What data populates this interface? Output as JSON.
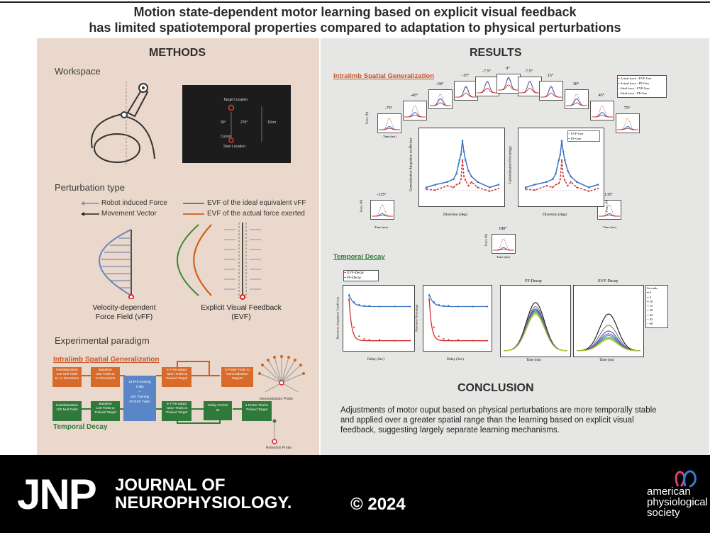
{
  "title": {
    "line1": "Motion state-dependent motor learning based on explicit visual feedback",
    "line2": "has limited spatiotemporal properties compared to adaptation to physical perturbations"
  },
  "methods": {
    "heading": "METHODS",
    "workspace": {
      "label": "Workspace",
      "screen": {
        "target": "Target Location",
        "cursor": "Cursor",
        "start": "Start Location",
        "left_angle": "90°",
        "right_angle": "270°",
        "distance": "10cm"
      }
    },
    "perturbation": {
      "label": "Perturbation type",
      "legend": {
        "robot": "Robot induced Force",
        "movement": "Movement Vector",
        "evf_ideal": "EVF of the ideal equivalent vFF",
        "evf_actual": "EVF of the actual force exerted"
      },
      "vff_caption": [
        "Velocity-dependent",
        "Force Field (vFF)"
      ],
      "evf_caption": [
        "Explicit Visual Feedback",
        "(EVF)"
      ]
    },
    "paradigm": {
      "label": "Experimental paradigm",
      "spatial_title": "Intralimb Spatial Generalization",
      "temporal_title": "Temporal Decay",
      "boxes": {
        "fam_top": [
          "Familiarization",
          "112 Null Trials",
          "to 14 Directions"
        ],
        "base_top": [
          "Baseline",
          "252 Trials to",
          "14 Directions"
        ],
        "center": [
          "15 Pre-training",
          "Trials",
          "+",
          "100 Training",
          "FF/EVF Trials"
        ],
        "readapt_top": [
          "5-7 Re-adapt",
          "-ation Trials at",
          "Trained Target"
        ],
        "probe_top": [
          "8 Probe Trials to",
          "Generalization",
          "Targets"
        ],
        "fam_bot": [
          "Familiarization",
          "100 Null Trials"
        ],
        "base_bot": [
          "Baseline",
          "128 Trials to",
          "Trained Target"
        ],
        "readapt_bot": [
          "5-7 Re-adapt",
          "-ation Trials at",
          "Trained Target"
        ],
        "delay": [
          "Delay Period",
          "Δt"
        ],
        "probe_bot": [
          "1 Probe Trial to",
          "Trained Target"
        ]
      },
      "gen_probe": "Generalization Probe",
      "ret_probe": "Retention Probe"
    }
  },
  "results": {
    "heading": "RESULTS",
    "spatial_title": "Intralimb Spatial Generalization",
    "temporal_title": "Temporal Decay",
    "angles": [
      "-75",
      "-45",
      "-30",
      "-15",
      "-7.5",
      "0",
      "7.5",
      "15",
      "30",
      "45",
      "75"
    ],
    "side_angles": [
      "-135",
      "135",
      "180"
    ],
    "legend_top": [
      "Actual force - EVF-Gen",
      "Actual force - FF-Gen",
      "Ideal force - EVF-Gen",
      "Ideal force - FF-Gen"
    ],
    "inner_legend": [
      "EVF-Gen",
      "FF-Gen"
    ],
    "axis": {
      "force": "Force (N)",
      "time": "Time (ms)",
      "direction": "Direction (deg)",
      "gen_coef": "Generalization Adaptation coefficient",
      "gen_pct": "Generalization Percentage",
      "ret_coef": "Retention Adaptation Coefficient",
      "ret_pct": "Retention Percentage",
      "delay": "Delay (Sec)"
    },
    "decay_legend": [
      "EVF-Decay",
      "FF-Decay"
    ],
    "ff_decay": "FF-Decay",
    "evf_decay": "EVF-Decay",
    "seconds_label": "Seconds",
    "seconds": [
      "0",
      "5",
      "10",
      "15",
      "20",
      "30",
      "45",
      "60"
    ],
    "colors": {
      "red": "#d03030",
      "blue": "#3b73c6",
      "spatial_title": "#c8552a",
      "temporal_title": "#2f7a3a"
    }
  },
  "conclusion": {
    "heading": "CONCLUSION",
    "text": "Adjustments of motor ouput based on physical perturbations are more temporally stable and applied over a greater spatial range than the learning based on explicit visual feedback, suggesting largely separate learning mechanisms."
  },
  "footer": {
    "jnp": "JNP",
    "journal_line1": "JOURNAL OF",
    "journal_line2": "NEUROPHYSIOLOGY.",
    "copyright": "© 2024",
    "aps": [
      "american",
      "physiological",
      "society"
    ]
  }
}
